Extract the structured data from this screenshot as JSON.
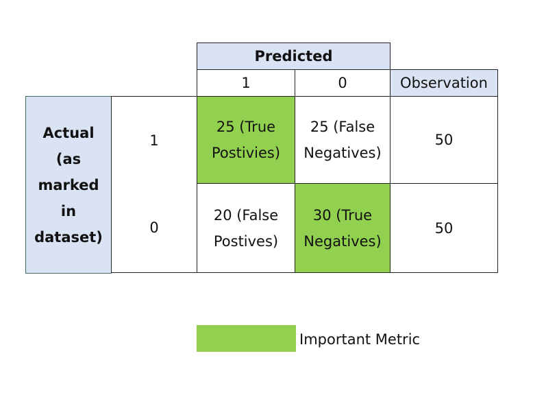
{
  "colors": {
    "header_fill": "#dae3f3",
    "highlight_fill": "#92d050",
    "border": "#222222",
    "actual_border": "#3f6b5f"
  },
  "header": {
    "predicted_label": "Predicted",
    "predicted_values": [
      "1",
      "0"
    ],
    "observation_label": "Observation"
  },
  "actual": {
    "label": "Actual\n(as\nmarked\nin\ndataset)",
    "rows": [
      {
        "value": "1",
        "cells": [
          {
            "text": "25 (True\nPostivies)",
            "highlight": true
          },
          {
            "text": "25 (False\nNegatives)",
            "highlight": false
          }
        ],
        "observation": "50"
      },
      {
        "value": "0",
        "cells": [
          {
            "text": "20 (False\nPostives)",
            "highlight": false
          },
          {
            "text": "30 (True\nNegatives)",
            "highlight": true
          }
        ],
        "observation": "50"
      }
    ]
  },
  "legend": {
    "label": "Important Metric"
  }
}
